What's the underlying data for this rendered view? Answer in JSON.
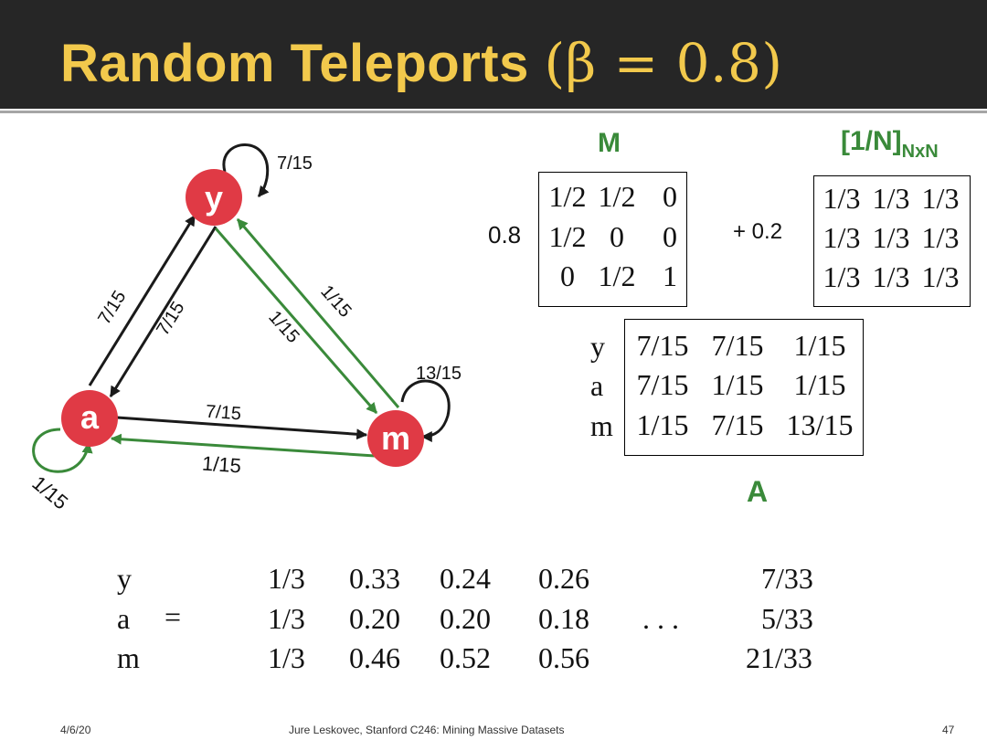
{
  "title": {
    "main": "Random Teleports ",
    "paren": "(β = 0.8)"
  },
  "graph": {
    "nodes": {
      "y": "y",
      "a": "a",
      "m": "m"
    },
    "edge_labels": {
      "y_self": "7/15",
      "y_to_a": "7/15",
      "a_to_y": "7/15",
      "y_to_m": "1/15",
      "m_to_y": "1/15",
      "m_self": "13/15",
      "a_to_m": "7/15",
      "m_to_a": "1/15",
      "a_self": "1/15"
    },
    "colors": {
      "node": "#e03a45",
      "black_edge": "#1a1a1a",
      "green_edge": "#3a8a3a"
    }
  },
  "matrix_M": {
    "label": "M",
    "coefficient": "0.8",
    "rows": [
      [
        "1/2",
        "1/2",
        "0"
      ],
      [
        "1/2",
        "0",
        "0"
      ],
      [
        "0",
        "1/2",
        "1"
      ]
    ]
  },
  "matrix_T": {
    "label": "[1/N]",
    "subscript": "NxN",
    "coefficient": "+ 0.2",
    "rows": [
      [
        "1/3",
        "1/3",
        "1/3"
      ],
      [
        "1/3",
        "1/3",
        "1/3"
      ],
      [
        "1/3",
        "1/3",
        "1/3"
      ]
    ]
  },
  "matrix_A": {
    "label": "A",
    "row_labels": [
      "y",
      "a",
      "m"
    ],
    "rows": [
      [
        "7/15",
        "7/15",
        "1/15"
      ],
      [
        "7/15",
        "1/15",
        "1/15"
      ],
      [
        "1/15",
        "7/15",
        "13/15"
      ]
    ]
  },
  "iteration": {
    "row_labels": [
      "y",
      "a",
      "m"
    ],
    "equals": "=",
    "columns": [
      [
        "1/3",
        "1/3",
        "1/3"
      ],
      [
        "0.33",
        "0.20",
        "0.46"
      ],
      [
        "0.24",
        "0.20",
        "0.52"
      ],
      [
        "0.26",
        "0.18",
        "0.56"
      ]
    ],
    "ellipsis": ". . .",
    "final": [
      "7/33",
      "5/33",
      "21/33"
    ]
  },
  "footer": {
    "date": "4/6/20",
    "course": "Jure Leskovec, Stanford C246: Mining Massive Datasets",
    "page": "47"
  }
}
